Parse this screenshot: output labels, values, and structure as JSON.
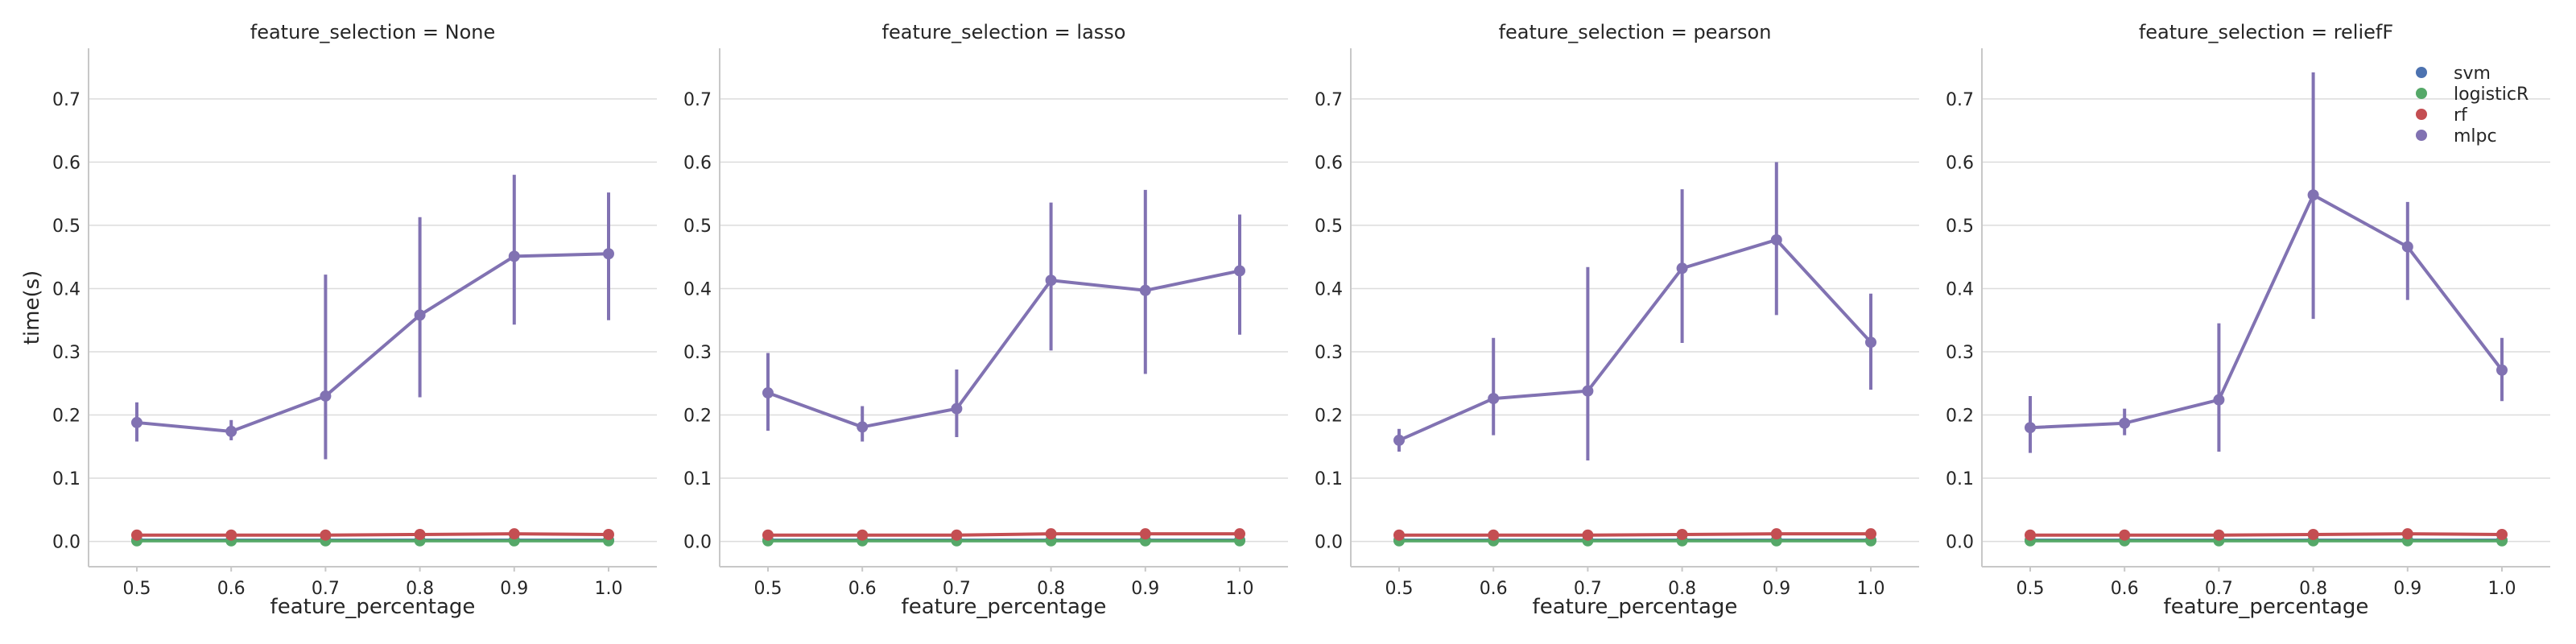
{
  "chart_data": {
    "type": "line",
    "xlabel": "feature_percentage",
    "ylabel": "time(s)",
    "x": [
      0.5,
      0.6,
      0.7,
      0.8,
      0.9,
      1.0
    ],
    "x_tick_labels": [
      "0.5",
      "0.6",
      "0.7",
      "0.8",
      "0.9",
      "1.0"
    ],
    "ylim": [
      -0.04,
      0.78
    ],
    "y_ticks": [
      0.0,
      0.1,
      0.2,
      0.3,
      0.4,
      0.5,
      0.6,
      0.7
    ],
    "y_tick_labels": [
      "0.0",
      "0.1",
      "0.2",
      "0.3",
      "0.4",
      "0.5",
      "0.6",
      "0.7"
    ],
    "grid": "horizontal",
    "legend": {
      "placement": "top-right of last panel",
      "entries": [
        "svm",
        "logisticR",
        "rf",
        "mlpc"
      ]
    },
    "series_colors": {
      "svm": "#4c72b0",
      "logisticR": "#55a868",
      "rf": "#c44e52",
      "mlpc": "#8172b2"
    },
    "panels": [
      {
        "title": "feature_selection = None",
        "series": [
          {
            "name": "svm",
            "values": [
              0.002,
              0.002,
              0.002,
              0.002,
              0.002,
              0.002
            ]
          },
          {
            "name": "logisticR",
            "values": [
              0.001,
              0.001,
              0.001,
              0.001,
              0.001,
              0.001
            ]
          },
          {
            "name": "rf",
            "values": [
              0.01,
              0.01,
              0.01,
              0.011,
              0.012,
              0.011
            ]
          },
          {
            "name": "mlpc",
            "values": [
              0.188,
              0.174,
              0.23,
              0.358,
              0.451,
              0.455
            ],
            "err_low": [
              0.158,
              0.16,
              0.13,
              0.228,
              0.343,
              0.35
            ],
            "err_high": [
              0.22,
              0.192,
              0.422,
              0.513,
              0.58,
              0.552
            ]
          }
        ]
      },
      {
        "title": "feature_selection = lasso",
        "series": [
          {
            "name": "svm",
            "values": [
              0.002,
              0.002,
              0.002,
              0.002,
              0.002,
              0.002
            ]
          },
          {
            "name": "logisticR",
            "values": [
              0.001,
              0.001,
              0.001,
              0.001,
              0.001,
              0.001
            ]
          },
          {
            "name": "rf",
            "values": [
              0.01,
              0.01,
              0.01,
              0.012,
              0.012,
              0.012
            ]
          },
          {
            "name": "mlpc",
            "values": [
              0.235,
              0.181,
              0.21,
              0.413,
              0.397,
              0.428
            ],
            "err_low": [
              0.175,
              0.158,
              0.165,
              0.302,
              0.265,
              0.327
            ],
            "err_high": [
              0.298,
              0.214,
              0.272,
              0.536,
              0.556,
              0.517
            ]
          }
        ]
      },
      {
        "title": "feature_selection = pearson",
        "series": [
          {
            "name": "svm",
            "values": [
              0.002,
              0.002,
              0.002,
              0.002,
              0.002,
              0.002
            ]
          },
          {
            "name": "logisticR",
            "values": [
              0.001,
              0.001,
              0.001,
              0.001,
              0.001,
              0.001
            ]
          },
          {
            "name": "rf",
            "values": [
              0.01,
              0.01,
              0.01,
              0.011,
              0.012,
              0.012
            ]
          },
          {
            "name": "mlpc",
            "values": [
              0.16,
              0.226,
              0.238,
              0.432,
              0.477,
              0.315
            ],
            "err_low": [
              0.142,
              0.168,
              0.128,
              0.314,
              0.358,
              0.24
            ],
            "err_high": [
              0.178,
              0.322,
              0.434,
              0.557,
              0.6,
              0.392
            ]
          }
        ]
      },
      {
        "title": "feature_selection = reliefF",
        "series": [
          {
            "name": "svm",
            "values": [
              0.002,
              0.002,
              0.002,
              0.002,
              0.002,
              0.002
            ]
          },
          {
            "name": "logisticR",
            "values": [
              0.001,
              0.001,
              0.001,
              0.001,
              0.001,
              0.001
            ]
          },
          {
            "name": "rf",
            "values": [
              0.01,
              0.01,
              0.01,
              0.011,
              0.012,
              0.011
            ]
          },
          {
            "name": "mlpc",
            "values": [
              0.18,
              0.187,
              0.224,
              0.548,
              0.466,
              0.271
            ],
            "err_low": [
              0.14,
              0.168,
              0.142,
              0.352,
              0.382,
              0.222
            ],
            "err_high": [
              0.23,
              0.21,
              0.345,
              0.742,
              0.537,
              0.322
            ]
          }
        ]
      }
    ]
  }
}
